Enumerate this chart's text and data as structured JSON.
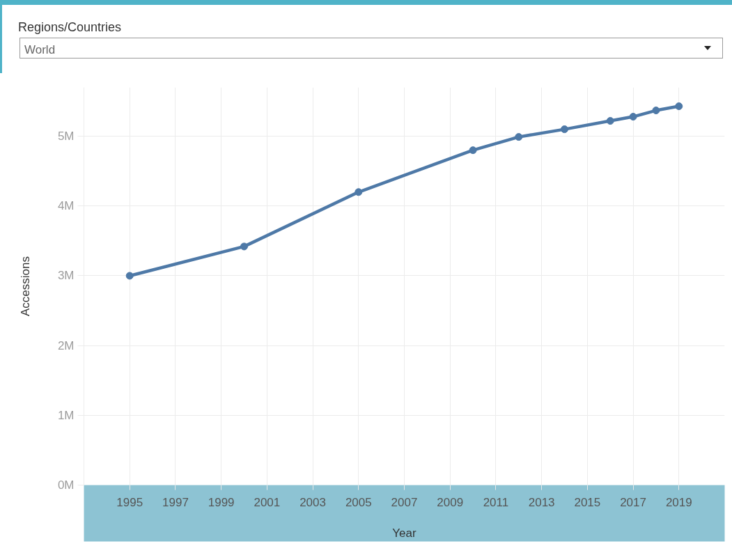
{
  "chart_data": {
    "type": "line",
    "annotations": [
      "Regions/Countries",
      "World"
    ],
    "xlabel": "Year",
    "ylabel": "Accessions",
    "x": [
      1995,
      2000,
      2005,
      2010,
      2012,
      2014,
      2016,
      2017,
      2018,
      2019
    ],
    "values": [
      3000000,
      3420000,
      4200000,
      4800000,
      4990000,
      5100000,
      5220000,
      5280000,
      5370000,
      5430000
    ],
    "color": "#4e79a7",
    "marker": "circle",
    "line_style": "solid",
    "grid": true,
    "xlim": [
      1993,
      2021
    ],
    "xticks": [
      1995,
      1997,
      1999,
      2001,
      2003,
      2005,
      2007,
      2009,
      2011,
      2013,
      2015,
      2017,
      2019
    ],
    "ylim": [
      0,
      5700000
    ],
    "yticks": [
      {
        "value": 0,
        "label": "0M"
      },
      {
        "value": 1000000,
        "label": "1M"
      },
      {
        "value": 2000000,
        "label": "2M"
      },
      {
        "value": 3000000,
        "label": "3M"
      },
      {
        "value": 4000000,
        "label": "4M"
      },
      {
        "value": 5000000,
        "label": "5M"
      }
    ]
  }
}
